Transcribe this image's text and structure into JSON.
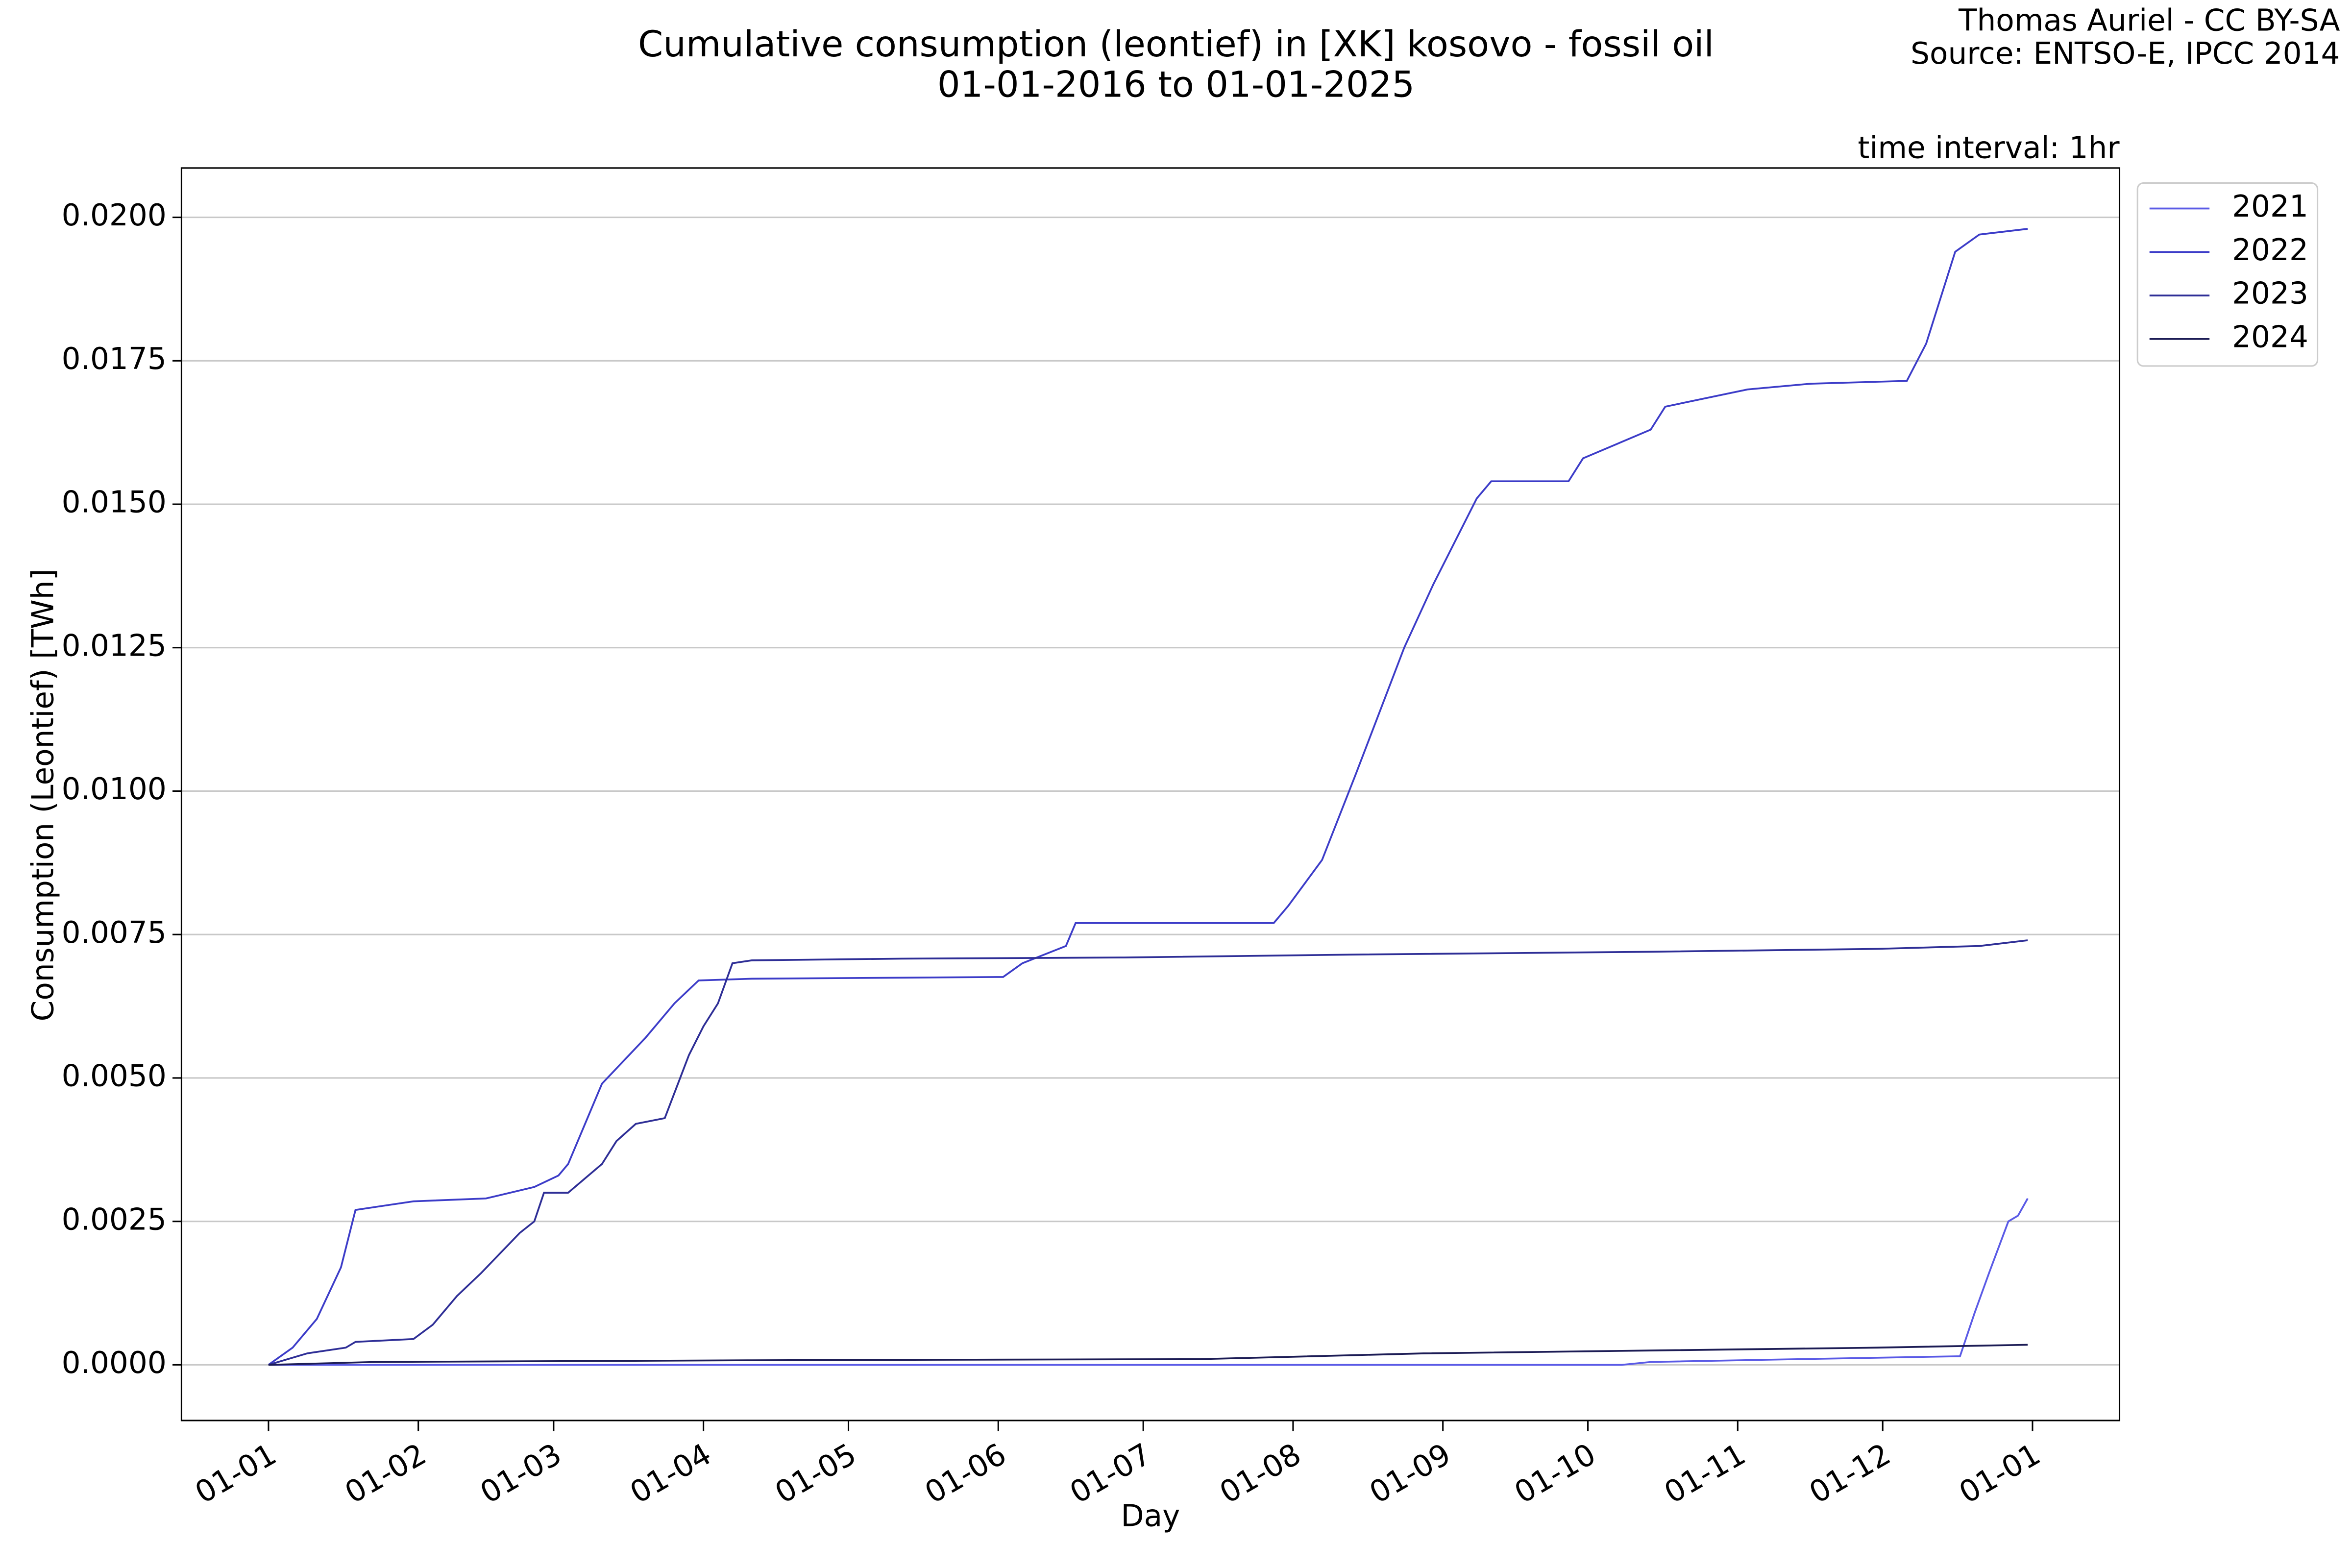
{
  "chart_data": {
    "type": "line",
    "title": "Cumulative consumption (leontief) in [XK] kosovo - fossil oil",
    "subtitle": "01-01-2016 to 01-01-2025",
    "annotations": [
      "Thomas Auriel - CC BY-SA",
      "Source: ENTSO-E, IPCC 2014",
      "time interval: 1hr"
    ],
    "xlabel": "Day",
    "ylabel": "Consumption (Leontief) [TWh]",
    "xlim": [
      -18,
      383
    ],
    "ylim": [
      -0.00097,
      0.02086
    ],
    "xticks": [
      {
        "value": 0,
        "label": "01-01"
      },
      {
        "value": 31,
        "label": "01-02"
      },
      {
        "value": 59,
        "label": "01-03"
      },
      {
        "value": 90,
        "label": "01-04"
      },
      {
        "value": 120,
        "label": "01-05"
      },
      {
        "value": 151,
        "label": "01-06"
      },
      {
        "value": 181,
        "label": "01-07"
      },
      {
        "value": 212,
        "label": "01-08"
      },
      {
        "value": 243,
        "label": "01-09"
      },
      {
        "value": 273,
        "label": "01-10"
      },
      {
        "value": 304,
        "label": "01-11"
      },
      {
        "value": 334,
        "label": "01-12"
      },
      {
        "value": 365,
        "label": "01-01"
      }
    ],
    "yticks": [
      {
        "value": 0,
        "label": "0.0000"
      },
      {
        "value": 0.0025,
        "label": "0.0025"
      },
      {
        "value": 0.005,
        "label": "0.0050"
      },
      {
        "value": 0.0075,
        "label": "0.0075"
      },
      {
        "value": 0.01,
        "label": "0.0100"
      },
      {
        "value": 0.0125,
        "label": "0.0125"
      },
      {
        "value": 0.015,
        "label": "0.0150"
      },
      {
        "value": 0.0175,
        "label": "0.0175"
      },
      {
        "value": 0.02,
        "label": "0.0200"
      }
    ],
    "grid": true,
    "legend": "outside-upper-right",
    "series": [
      {
        "name": "2021",
        "color": "#5a5ae6",
        "x": [
          0,
          280,
          286,
          317,
          350,
          353,
          356,
          360,
          362,
          364
        ],
        "values": [
          0,
          0,
          5e-05,
          0.0001,
          0.00015,
          0.0009,
          0.0016,
          0.0025,
          0.0026,
          0.0029
        ]
      },
      {
        "name": "2022",
        "color": "#3c3cc8",
        "x": [
          0,
          5,
          10,
          15,
          18,
          30,
          45,
          55,
          60,
          62,
          69,
          78,
          84,
          89,
          100,
          152,
          156,
          165,
          167,
          208,
          211,
          218,
          225,
          235,
          241,
          250,
          253,
          269,
          272,
          286,
          289,
          306,
          319,
          339,
          343,
          349,
          354,
          364
        ],
        "values": [
          0,
          0.0003,
          0.0008,
          0.0017,
          0.0027,
          0.00285,
          0.0029,
          0.0031,
          0.0033,
          0.0035,
          0.0049,
          0.0057,
          0.0063,
          0.0067,
          0.00673,
          0.00676,
          0.007,
          0.0073,
          0.0077,
          0.0077,
          0.008,
          0.0088,
          0.0103,
          0.0125,
          0.0136,
          0.0151,
          0.0154,
          0.0154,
          0.0158,
          0.0163,
          0.0167,
          0.017,
          0.0171,
          0.01715,
          0.0178,
          0.0194,
          0.0197,
          0.0198
        ]
      },
      {
        "name": "2023",
        "color": "#2e2e96",
        "x": [
          0,
          8,
          16,
          18,
          30,
          34,
          39,
          44,
          52,
          55,
          57,
          62,
          69,
          72,
          76,
          82,
          87,
          90,
          93,
          96,
          100,
          131,
          177,
          224,
          286,
          333,
          354,
          364
        ],
        "values": [
          0,
          0.0002,
          0.0003,
          0.0004,
          0.00045,
          0.0007,
          0.0012,
          0.0016,
          0.0023,
          0.0025,
          0.003,
          0.003,
          0.0035,
          0.0039,
          0.0042,
          0.0043,
          0.0054,
          0.0059,
          0.0063,
          0.007,
          0.00705,
          0.00708,
          0.0071,
          0.00715,
          0.0072,
          0.00725,
          0.0073,
          0.0074
        ]
      },
      {
        "name": "2024",
        "color": "#1c1c55",
        "x": [
          0,
          22,
          100,
          193,
          239,
          286,
          333,
          364
        ],
        "values": [
          0,
          5e-05,
          8e-05,
          0.0001,
          0.0002,
          0.00025,
          0.0003,
          0.00035
        ]
      }
    ]
  }
}
